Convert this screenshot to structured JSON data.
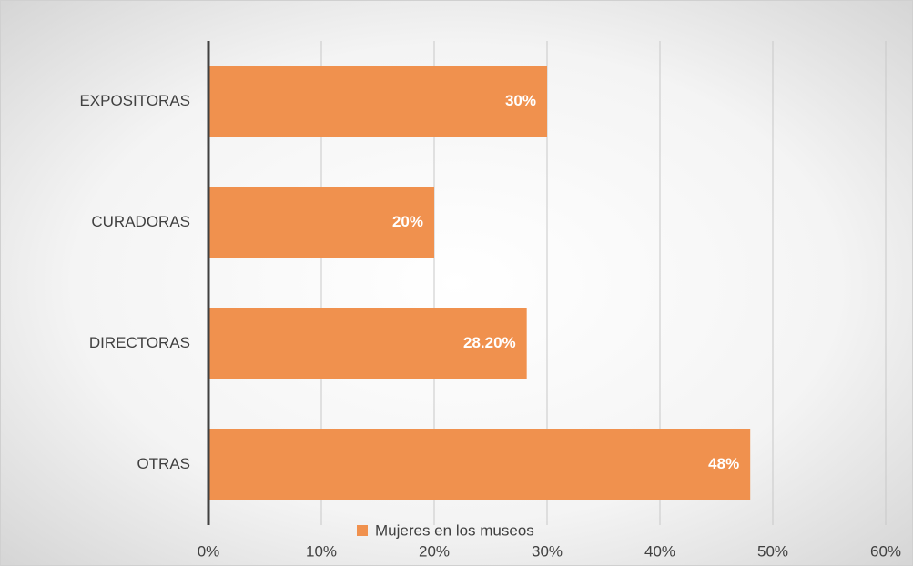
{
  "chart_data": {
    "type": "bar",
    "orientation": "horizontal",
    "categories": [
      "EXPOSITORAS",
      "CURADORAS",
      "DIRECTORAS",
      "OTRAS"
    ],
    "series": [
      {
        "name": "Mujeres en los museos",
        "color": "#f0914e",
        "values": [
          30,
          20,
          28.2,
          48
        ],
        "value_labels": [
          "30%",
          "20%",
          "28.20%",
          "48%"
        ]
      }
    ],
    "xlim": [
      0,
      60
    ],
    "xticks": [
      {
        "value": 0,
        "label": "0%"
      },
      {
        "value": 10,
        "label": "10%"
      },
      {
        "value": 20,
        "label": "20%"
      },
      {
        "value": 30,
        "label": "30%"
      },
      {
        "value": 40,
        "label": "40%"
      },
      {
        "value": 50,
        "label": "50%"
      },
      {
        "value": 60,
        "label": "60%"
      }
    ],
    "grid": true,
    "legend": "bottom"
  }
}
